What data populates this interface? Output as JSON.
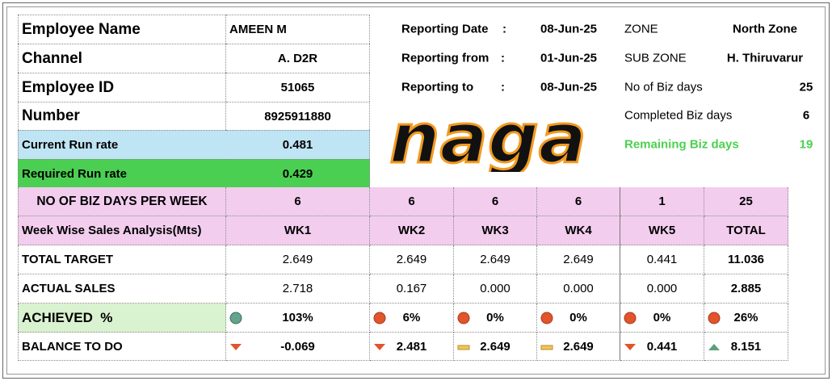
{
  "employee": {
    "rows": [
      [
        "Employee Name",
        "AMEEN M"
      ],
      [
        "Channel",
        "A. D2R"
      ],
      [
        "Employee ID",
        "51065"
      ],
      [
        "Number",
        "8925911880"
      ],
      [
        "Current Run rate",
        "0.481"
      ],
      [
        "Required Run rate",
        "0.429"
      ]
    ]
  },
  "reporting": [
    [
      "Reporting Date",
      ":",
      "08-Jun-25"
    ],
    [
      "Reporting from",
      ":",
      "01-Jun-25"
    ],
    [
      "Reporting to",
      ":",
      "08-Jun-25"
    ]
  ],
  "zone": [
    [
      "ZONE",
      "North Zone"
    ],
    [
      "SUB ZONE",
      "H. Thiruvarur"
    ],
    [
      "No of Biz days",
      "25"
    ],
    [
      "Completed Biz days",
      "6"
    ],
    [
      "Remaining Biz days",
      "19"
    ]
  ],
  "logo": "naga",
  "table": {
    "rows": [
      [
        "NO OF BIZ DAYS PER WEEK",
        "6",
        "6",
        "6",
        "6",
        "1",
        "25"
      ],
      [
        "Week Wise Sales Analysis(Mts)",
        "WK1",
        "WK2",
        "WK3",
        "WK4",
        "WK5",
        "TOTAL"
      ],
      [
        "TOTAL TARGET",
        "2.649",
        "2.649",
        "2.649",
        "2.649",
        "0.441",
        "11.036"
      ],
      [
        "ACTUAL SALES",
        "2.718",
        "0.167",
        "0.000",
        "0.000",
        "0.000",
        "2.885"
      ],
      [
        "ACHIEVED  %",
        "103%",
        "6%",
        "0%",
        "0%",
        "0%",
        "26%"
      ],
      [
        "BALANCE TO DO",
        "-0.069",
        "2.481",
        "2.649",
        "2.649",
        "0.441",
        "8.151"
      ]
    ]
  }
}
